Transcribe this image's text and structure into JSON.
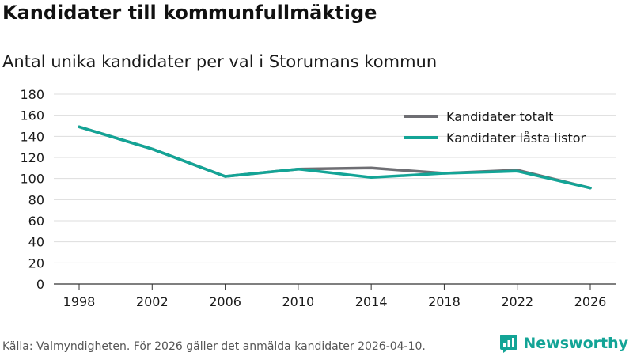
{
  "colors": {
    "total": "#6e6e73",
    "locked": "#13a496",
    "grid": "#dddddd",
    "axis": "#333333",
    "brand": "#13a496"
  },
  "brand": {
    "name": "Newsworthy",
    "icon": "newsworthy-logo-icon"
  },
  "source": "Källa: Valmyndigheten. För 2026 gäller det anmälda kandidater 2026-04-10.",
  "chart_data": {
    "type": "line",
    "title": "Kandidater till kommunfullmäktige",
    "subtitle": "Antal unika kandidater per val i Storumans kommun",
    "xlabel": "",
    "ylabel": "",
    "x": [
      1998,
      2002,
      2006,
      2010,
      2014,
      2018,
      2022,
      2026
    ],
    "ylim": [
      0,
      180
    ],
    "yticks": [
      0,
      20,
      40,
      60,
      80,
      100,
      120,
      140,
      160,
      180
    ],
    "grid": true,
    "legend_position": "top-right",
    "series": [
      {
        "name": "Kandidater totalt",
        "color_key": "total",
        "values": [
          149,
          128,
          102,
          109,
          110,
          105,
          108,
          91
        ]
      },
      {
        "name": "Kandidater låsta listor",
        "color_key": "locked",
        "values": [
          149,
          128,
          102,
          109,
          101,
          105,
          107,
          91
        ]
      }
    ]
  }
}
